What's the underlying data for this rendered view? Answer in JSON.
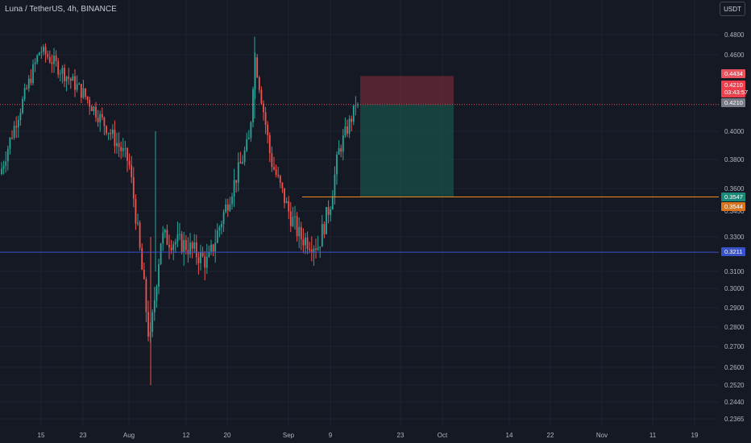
{
  "header": {
    "symbol_title": "Luna / TetherUS, 4h, BINANCE"
  },
  "currency_button": "USDT",
  "colors": {
    "background": "#151924",
    "grid": "#1f2430",
    "axis_text": "#b2b5be",
    "up": "#26a69a",
    "down": "#ef5350",
    "stop_zone": "rgba(137,46,58,0.55)",
    "target_zone": "rgba(24,92,80,0.6)",
    "orange_line": "#f5871f",
    "blue_line": "#3a52c7",
    "red_dotted_line": "#e8535f"
  },
  "price_axis": {
    "ticks": [
      "0.4800",
      "0.4600",
      "0.4000",
      "0.3800",
      "0.3600",
      "0.3450",
      "0.3300",
      "0.3100",
      "0.3000",
      "0.2900",
      "0.2800",
      "0.2700",
      "0.2600",
      "0.2520",
      "0.2440",
      "0.2365"
    ]
  },
  "time_axis": {
    "ticks": [
      "15",
      "23",
      "Aug",
      "12",
      "20",
      "Sep",
      "9",
      "23",
      "Oct",
      "14",
      "22",
      "Nov",
      "11",
      "19"
    ]
  },
  "price_labels": {
    "stop": "0.4434",
    "last_price": "0.4210",
    "countdown": "03:43:57",
    "entry": "0.4210",
    "target": "0.3547",
    "orange_level": "0.3544",
    "blue_level": "0.3211"
  },
  "chart_data": {
    "type": "candlestick",
    "symbol": "Luna / TetherUS",
    "interval": "4h",
    "exchange": "BINANCE",
    "price_range": [
      0.2365,
      0.49
    ],
    "grid": true,
    "approx_trajectory": [
      {
        "x": "early Jul",
        "price": 0.37
      },
      {
        "x": "15",
        "price": 0.465
      },
      {
        "x": "23",
        "price": 0.43
      },
      {
        "x": "Aug",
        "price": 0.38
      },
      {
        "x": "Aug (wick low)",
        "price": 0.252
      },
      {
        "x": "Aug (recovery)",
        "price": 0.325
      },
      {
        "x": "12",
        "price": 0.32
      },
      {
        "x": "20",
        "price": 0.37
      },
      {
        "x": "late Aug (high)",
        "price": 0.475
      },
      {
        "x": "Sep",
        "price": 0.33
      },
      {
        "x": "9",
        "price": 0.35
      },
      {
        "x": "mid Sep",
        "price": 0.421
      }
    ],
    "position_tool": {
      "direction": "short",
      "entry": 0.421,
      "stop": 0.4434,
      "target": 0.3547
    },
    "horizontal_lines": [
      {
        "price": 0.3544,
        "color": "orange"
      },
      {
        "price": 0.3211,
        "color": "blue"
      },
      {
        "price": 0.421,
        "color": "red-dotted"
      }
    ]
  }
}
